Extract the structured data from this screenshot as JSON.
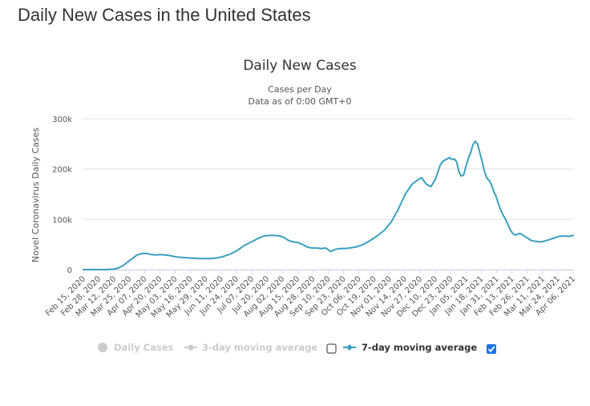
{
  "page": {
    "title": "Daily New Cases in the United States"
  },
  "chart_data": {
    "type": "line",
    "title": "Daily New Cases",
    "subtitle": "Cases per Day",
    "subtitle2": "Data as of 0:00 GMT+0",
    "ylabel": "Novel Coronavirus Daily Cases",
    "ylim": [
      0,
      300000
    ],
    "yticks": [
      0,
      100000,
      200000,
      300000
    ],
    "ytick_labels": [
      "0",
      "100k",
      "200k",
      "300k"
    ],
    "x_tick_labels": [
      "Feb 15, 2020",
      "Feb 28, 2020",
      "Mar 12, 2020",
      "Mar 25, 2020",
      "Apr 07, 2020",
      "Apr 20, 2020",
      "May 03, 2020",
      "May 16, 2020",
      "May 29, 2020",
      "Jun 11, 2020",
      "Jun 24, 2020",
      "Jul 07, 2020",
      "Jul 20, 2020",
      "Aug 02, 2020",
      "Aug 15, 2020",
      "Aug 28, 2020",
      "Sep 10, 2020",
      "Sep 23, 2020",
      "Oct 06, 2020",
      "Oct 19, 2020",
      "Nov 01, 2020",
      "Nov 14, 2020",
      "Nov 27, 2020",
      "Dec 10, 2020",
      "Dec 23, 2020",
      "Jan 05, 2021",
      "Jan 18, 2021",
      "Jan 31, 2021",
      "Feb 13, 2021",
      "Feb 26, 2021",
      "Mar 11, 2021",
      "Mar 24, 2021",
      "Apr 06, 2021"
    ],
    "x_day_range": [
      0,
      420
    ],
    "grid": true,
    "legend_position": "bottom",
    "series": [
      {
        "name": "Daily Cases",
        "visible": false,
        "color": "#cccccc"
      },
      {
        "name": "3-day moving average",
        "visible": false,
        "color": "#cccccc"
      },
      {
        "name": "7-day moving average",
        "visible": true,
        "color": "#3a9fbf",
        "days": [
          0,
          20,
          26,
          30,
          34,
          38,
          42,
          46,
          50,
          54,
          58,
          62,
          66,
          70,
          74,
          80,
          86,
          92,
          100,
          108,
          114,
          120,
          126,
          132,
          138,
          144,
          150,
          155,
          160,
          164,
          168,
          172,
          176,
          180,
          184,
          188,
          192,
          196,
          200,
          204,
          208,
          212,
          216,
          220,
          224,
          228,
          234,
          240,
          246,
          252,
          258,
          264,
          270,
          276,
          282,
          286,
          290,
          294,
          298,
          302,
          306,
          308,
          310,
          312,
          314,
          316,
          318,
          320,
          322,
          324,
          326,
          328,
          330,
          332,
          334,
          336,
          338,
          340,
          342,
          344,
          346,
          348,
          350,
          352,
          354,
          356,
          358,
          360,
          362,
          364,
          366,
          368,
          370,
          372,
          374,
          376,
          378,
          380,
          384,
          388,
          392,
          396,
          400,
          404,
          408,
          412,
          416,
          420
        ],
        "values": [
          0,
          0,
          1000,
          3000,
          8000,
          15000,
          22000,
          29000,
          32000,
          32000,
          30000,
          29000,
          30000,
          29000,
          28000,
          25000,
          24000,
          23000,
          22000,
          22000,
          23000,
          26000,
          31000,
          38000,
          48000,
          55000,
          62000,
          67000,
          68000,
          68000,
          67000,
          64000,
          58000,
          55000,
          54000,
          50000,
          45000,
          43000,
          43000,
          42000,
          43000,
          36000,
          40000,
          42000,
          42000,
          43000,
          45000,
          50000,
          58000,
          67000,
          78000,
          95000,
          120000,
          150000,
          170000,
          177000,
          183000,
          170000,
          165000,
          180000,
          208000,
          215000,
          218000,
          220000,
          223000,
          219000,
          220000,
          215000,
          195000,
          186000,
          188000,
          205000,
          220000,
          232000,
          248000,
          255000,
          250000,
          232000,
          215000,
          195000,
          182000,
          177000,
          168000,
          155000,
          145000,
          130000,
          118000,
          108000,
          100000,
          90000,
          80000,
          72000,
          69000,
          70000,
          72000,
          70000,
          67000,
          64000,
          58000,
          56000,
          55000,
          57000,
          60000,
          63000,
          66000,
          67000,
          66000,
          68000
        ]
      }
    ]
  },
  "legend": {
    "daily_cases": "Daily Cases",
    "avg3": "3-day moving average",
    "avg7": "7-day moving average"
  },
  "colors": {
    "line": "#3a9fbf",
    "grid": "#e6e6e6",
    "disabled": "#cccccc",
    "checkbox": "#1a73e8"
  }
}
